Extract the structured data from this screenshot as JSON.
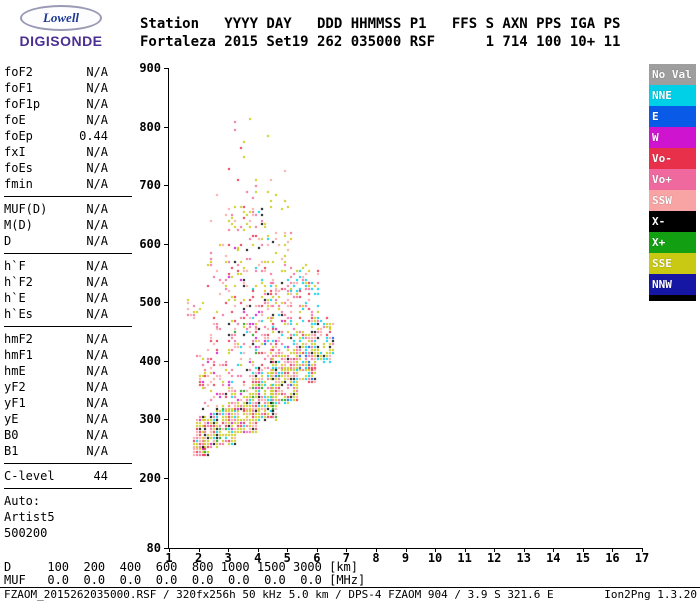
{
  "logo": {
    "primary": "Lowell",
    "secondary": "DIGISONDE"
  },
  "header": {
    "line1": "Station   YYYY DAY   DDD HHMMSS P1   FFS S AXN PPS IGA PS",
    "line2": "Fortaleza 2015 Set19 262 035000 RSF      1 714 100 10+ 11"
  },
  "parameters": {
    "sections": [
      {
        "rows": [
          {
            "label": "foF2",
            "value": "N/A"
          },
          {
            "label": "foF1",
            "value": "N/A"
          },
          {
            "label": "foF1p",
            "value": "N/A"
          },
          {
            "label": "foE",
            "value": "N/A"
          },
          {
            "label": "foEp",
            "value": "0.44"
          },
          {
            "label": "fxI",
            "value": "N/A"
          },
          {
            "label": "foEs",
            "value": "N/A"
          },
          {
            "label": "fmin",
            "value": "N/A"
          }
        ]
      },
      {
        "rows": [
          {
            "label": "MUF(D)",
            "value": "N/A"
          },
          {
            "label": "M(D)",
            "value": "N/A"
          },
          {
            "label": "D",
            "value": "N/A"
          }
        ]
      },
      {
        "rows": [
          {
            "label": "h`F",
            "value": "N/A"
          },
          {
            "label": "h`F2",
            "value": "N/A"
          },
          {
            "label": "h`E",
            "value": "N/A"
          },
          {
            "label": "h`Es",
            "value": "N/A"
          }
        ]
      },
      {
        "rows": [
          {
            "label": "hmF2",
            "value": "N/A"
          },
          {
            "label": "hmF1",
            "value": "N/A"
          },
          {
            "label": "hmE",
            "value": "N/A"
          },
          {
            "label": "yF2",
            "value": "N/A"
          },
          {
            "label": "yF1",
            "value": "N/A"
          },
          {
            "label": "yE",
            "value": "N/A"
          },
          {
            "label": "B0",
            "value": "N/A"
          },
          {
            "label": "B1",
            "value": "N/A"
          }
        ]
      },
      {
        "rows": [
          {
            "label": "C-level",
            "value": "44"
          }
        ]
      },
      {
        "no_rule": true,
        "rows": [
          {
            "label": "Auto:",
            "value": ""
          },
          {
            "label": "Artist5",
            "value": ""
          },
          {
            "label": "500200",
            "value": ""
          }
        ]
      }
    ]
  },
  "legend": {
    "entries": [
      {
        "label": "No Val",
        "color": "#9e9e9e"
      },
      {
        "label": "NNE",
        "color": "#00cfe8"
      },
      {
        "label": "E",
        "color": "#0a5ae8"
      },
      {
        "label": "W",
        "color": "#cf14cf"
      },
      {
        "label": "Vo-",
        "color": "#e8304a"
      },
      {
        "label": "Vo+",
        "color": "#f0699e"
      },
      {
        "label": "SSW",
        "color": "#f8a4a4"
      },
      {
        "label": "X-",
        "color": "#000000"
      },
      {
        "label": "X+",
        "color": "#12a012"
      },
      {
        "label": "SSE",
        "color": "#c9c914"
      },
      {
        "label": "NNW",
        "color": "#1616a5"
      }
    ]
  },
  "chart_data": {
    "type": "scatter",
    "xlabel": "[MHz]",
    "ylabel": "[km]",
    "xlim": [
      1,
      17
    ],
    "ylim": [
      80,
      900
    ],
    "x_ticks": [
      1,
      2,
      3,
      4,
      5,
      6,
      7,
      8,
      9,
      10,
      11,
      12,
      13,
      14,
      15,
      16,
      17
    ],
    "y_ticks": [
      900,
      800,
      700,
      600,
      500,
      400,
      300,
      200,
      80
    ],
    "freq_step_mhz": 0.1,
    "height_step_km": 5,
    "colors": {
      "NoVal": "#9e9e9e",
      "NNE": "#00cfe8",
      "E": "#0a5ae8",
      "W": "#cf14cf",
      "Vo-": "#e8304a",
      "Vo+": "#f0699e",
      "SSW": "#f8a4a4",
      "X-": "#000000",
      "X+": "#12a012",
      "SSE": "#c9c914",
      "NNW": "#1616a5"
    },
    "clusters": [
      {
        "x": [
          1.75,
          2.35
        ],
        "y": [
          238,
          272
        ],
        "n": 140,
        "bias": 1.3,
        "w": {
          "SSE": 4,
          "Vo-": 1.8,
          "SSW": 1.4,
          "Vo+": 1.0,
          "X-": 0.9,
          "W": 0.4,
          "X+": 0.3
        }
      },
      {
        "x": [
          1.85,
          2.65
        ],
        "y": [
          252,
          305
        ],
        "n": 150,
        "bias": 1.2,
        "w": {
          "SSE": 3.5,
          "SSW": 1.6,
          "Vo+": 1.4,
          "Vo-": 1.2,
          "X-": 0.5,
          "NNE": 0.4,
          "W": 0.4
        }
      },
      {
        "x": [
          2.45,
          3.25
        ],
        "y": [
          260,
          320
        ],
        "n": 180,
        "bias": 1.2,
        "w": {
          "SSE": 4,
          "SSW": 1.5,
          "Vo+": 1.4,
          "Vo-": 1.0,
          "X-": 0.6,
          "X+": 0.5,
          "NNE": 0.5,
          "W": 0.4
        }
      },
      {
        "x": [
          3.05,
          3.95
        ],
        "y": [
          278,
          348
        ],
        "n": 210,
        "bias": 1.2,
        "w": {
          "SSE": 4,
          "SSW": 1.6,
          "Vo+": 1.5,
          "Vo-": 1.0,
          "NNE": 0.8,
          "X-": 0.7,
          "W": 0.5,
          "X+": 0.4
        }
      },
      {
        "x": [
          3.75,
          4.65
        ],
        "y": [
          302,
          382
        ],
        "n": 230,
        "bias": 1.2,
        "w": {
          "SSE": 4,
          "SSW": 1.8,
          "Vo+": 1.5,
          "Vo-": 1.0,
          "NNE": 1.0,
          "X-": 0.8,
          "X+": 0.5,
          "W": 0.5
        }
      },
      {
        "x": [
          4.45,
          5.35
        ],
        "y": [
          332,
          418
        ],
        "n": 230,
        "bias": 1.2,
        "w": {
          "SSE": 4,
          "SSW": 1.8,
          "Vo+": 1.5,
          "Vo-": 1.0,
          "NNE": 1.1,
          "X-": 0.8,
          "E": 0.4,
          "X+": 0.4
        }
      },
      {
        "x": [
          5.15,
          5.95
        ],
        "y": [
          365,
          452
        ],
        "n": 170,
        "bias": 1.2,
        "w": {
          "SSE": 3.5,
          "SSW": 1.5,
          "Vo+": 1.4,
          "NNE": 1.2,
          "Vo-": 0.9,
          "X-": 0.7,
          "E": 0.5
        }
      },
      {
        "x": [
          5.75,
          6.5
        ],
        "y": [
          400,
          478
        ],
        "n": 110,
        "bias": 1.1,
        "w": {
          "SSE": 3,
          "NNE": 1.6,
          "Vo+": 1.2,
          "SSW": 1.1,
          "X-": 0.8,
          "Vo-": 0.7,
          "E": 0.5
        }
      },
      {
        "x": [
          1.9,
          3.0
        ],
        "y": [
          305,
          425
        ],
        "n": 70,
        "w": {
          "SSW": 2,
          "Vo+": 1.8,
          "Vo-": 1.4,
          "W": 0.9,
          "SSE": 1.2,
          "X-": 0.5,
          "NNE": 0.4
        }
      },
      {
        "x": [
          3.0,
          4.1
        ],
        "y": [
          350,
          500
        ],
        "n": 120,
        "w": {
          "SSW": 2,
          "Vo+": 1.8,
          "Vo-": 1.4,
          "SSE": 1.6,
          "W": 0.9,
          "NNE": 0.7,
          "X-": 0.6,
          "X+": 0.3
        }
      },
      {
        "x": [
          4.1,
          5.1
        ],
        "y": [
          385,
          535
        ],
        "n": 120,
        "w": {
          "SSW": 2,
          "Vo+": 1.8,
          "Vo-": 1.2,
          "SSE": 1.6,
          "NNE": 1.1,
          "X-": 0.6,
          "W": 0.5,
          "E": 0.3
        }
      },
      {
        "x": [
          5.0,
          6.05
        ],
        "y": [
          455,
          555
        ],
        "n": 55,
        "w": {
          "Vo+": 1.5,
          "SSW": 1.4,
          "NNE": 1.5,
          "SSE": 1.4,
          "Vo-": 0.7,
          "X-": 0.5
        }
      },
      {
        "x": [
          2.9,
          3.6
        ],
        "y": [
          490,
          665
        ],
        "n": 55,
        "w": {
          "SSE": 2.4,
          "Vo+": 1.1,
          "SSW": 1.0,
          "Vo-": 0.8,
          "X-": 0.4,
          "W": 0.4
        }
      },
      {
        "x": [
          3.6,
          4.5
        ],
        "y": [
          490,
          695
        ],
        "n": 65,
        "w": {
          "SSE": 2.4,
          "Vo+": 1.1,
          "SSW": 1.0,
          "Vo-": 0.8,
          "X-": 0.4,
          "NNE": 0.4
        }
      },
      {
        "x": [
          4.5,
          5.1
        ],
        "y": [
          480,
          625
        ],
        "n": 35,
        "w": {
          "SSE": 2,
          "Vo+": 1,
          "SSW": 1,
          "X-": 0.4
        }
      },
      {
        "x": [
          2.3,
          2.95
        ],
        "y": [
          430,
          585
        ],
        "n": 30,
        "w": {
          "SSE": 1.6,
          "Vo+": 1.1,
          "SSW": 1.0,
          "Vo-": 0.6
        }
      },
      {
        "x": [
          5.1,
          5.75
        ],
        "y": [
          470,
          565
        ],
        "n": 20,
        "w": {
          "SSE": 1.5,
          "NNE": 1.1,
          "Vo+": 1.0
        }
      },
      {
        "x": [
          2.3,
          5.2
        ],
        "y": [
          560,
          735
        ],
        "n": 28,
        "w": {
          "SSE": 1.5,
          "Vo+": 1.0,
          "SSW": 0.8,
          "Vo-": 0.6,
          "X-": 0.4
        }
      },
      {
        "x": [
          2.7,
          4.3
        ],
        "y": [
          735,
          830
        ],
        "n": 7,
        "w": {
          "Vo-": 1,
          "SSE": 1,
          "Vo+": 0.8
        }
      },
      {
        "x": [
          1.6,
          2.15
        ],
        "y": [
          468,
          508
        ],
        "n": 12,
        "w": {
          "SSW": 2,
          "Vo+": 1.2,
          "SSE": 0.7
        }
      }
    ]
  },
  "distance_muf_table": {
    "d_line": "D     100  200  400  600  800 1000 1500 3000 [km]",
    "muf_line": "MUF   0.0  0.0  0.0  0.0  0.0  0.0  0.0  0.0 [MHz]"
  },
  "footer": {
    "left": "FZAOM_2015262035000.RSF / 320fx256h 50 kHz 5.0 km / DPS-4 FZAOM 904 / 3.9 S 321.6 E",
    "right": "Ion2Png 1.3.20"
  }
}
